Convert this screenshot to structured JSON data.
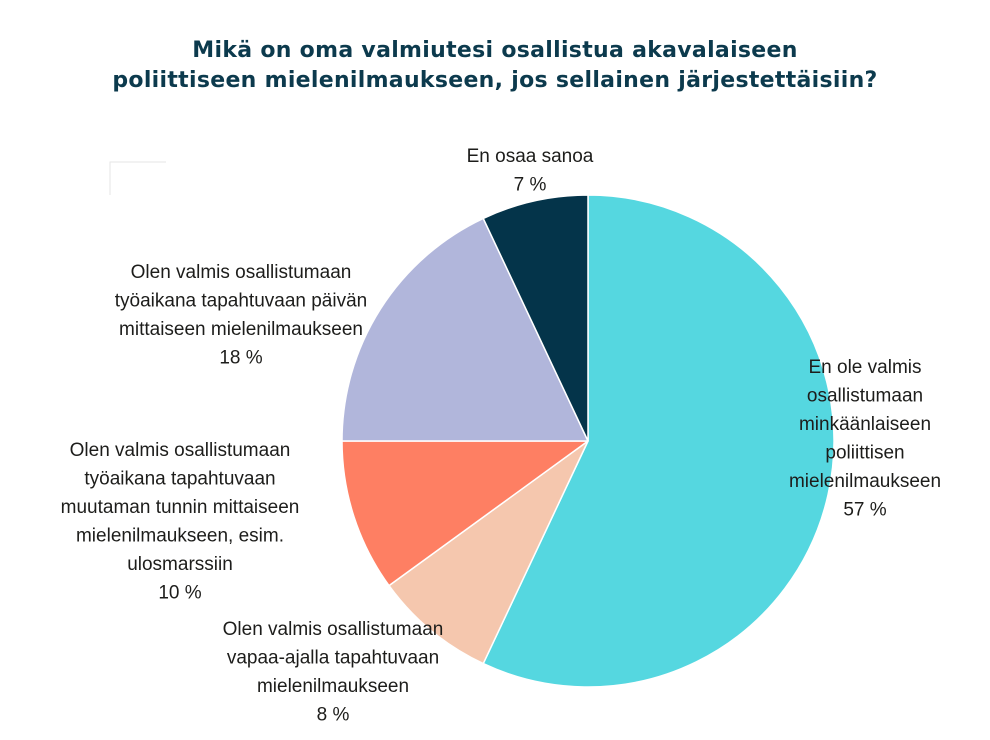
{
  "chart_data": {
    "type": "pie",
    "title_lines": [
      "Mikä on oma valmiutesi osallistua akavalaiseen",
      "poliittiseen mielenilmaukseen, jos sellainen järjestettäisiin?"
    ],
    "slices": [
      {
        "label_lines": [
          "En ole valmis",
          "osallistumaan",
          "minkäänlaiseen",
          "poliittisen",
          "mielenilmaukseen"
        ],
        "value": 57,
        "value_label": "57 %",
        "color": "#55d7e0"
      },
      {
        "label_lines": [
          "Olen valmis osallistumaan",
          "vapaa-ajalla tapahtuvaan",
          "mielenilmaukseen"
        ],
        "value": 8,
        "value_label": "8 %",
        "color": "#f5c7ae"
      },
      {
        "label_lines": [
          "Olen valmis osallistumaan",
          "työaikana tapahtuvaan",
          "muutaman tunnin mittaiseen",
          "mielenilmaukseen, esim.",
          "ulosmarssiin"
        ],
        "value": 10,
        "value_label": "10 %",
        "color": "#fe7f63"
      },
      {
        "label_lines": [
          "Olen valmis osallistumaan",
          "työaikana tapahtuvaan päivän",
          "mittaiseen mielenilmaukseen"
        ],
        "value": 18,
        "value_label": "18 %",
        "color": "#b1b6db"
      },
      {
        "label_lines": [
          "En osaa sanoa"
        ],
        "value": 7,
        "value_label": "7 %",
        "color": "#04344a"
      }
    ]
  }
}
